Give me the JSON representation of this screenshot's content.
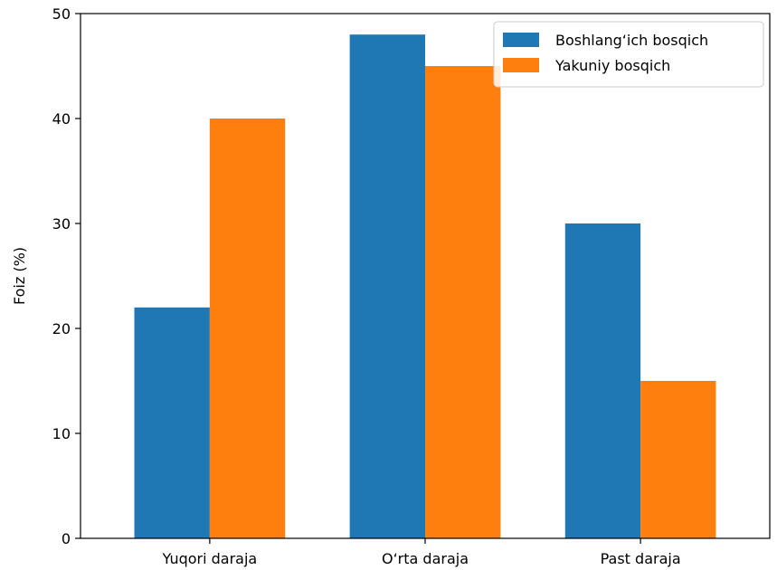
{
  "chart_data": {
    "type": "bar",
    "title": "",
    "xlabel": "",
    "ylabel": "Foiz (%)",
    "categories": [
      "Yuqori daraja",
      "O‘rta daraja",
      "Past daraja"
    ],
    "series": [
      {
        "name": "Boshlang‘ich bosqich",
        "values": [
          22,
          48,
          30
        ],
        "color": "#1f77b4"
      },
      {
        "name": "Yakuniy bosqich",
        "values": [
          40,
          45,
          15
        ],
        "color": "#ff7f0e"
      }
    ],
    "ylim": [
      0,
      50
    ],
    "yticks": [
      0,
      10,
      20,
      30,
      40,
      50
    ],
    "legend_position": "top-right",
    "grid": false
  }
}
